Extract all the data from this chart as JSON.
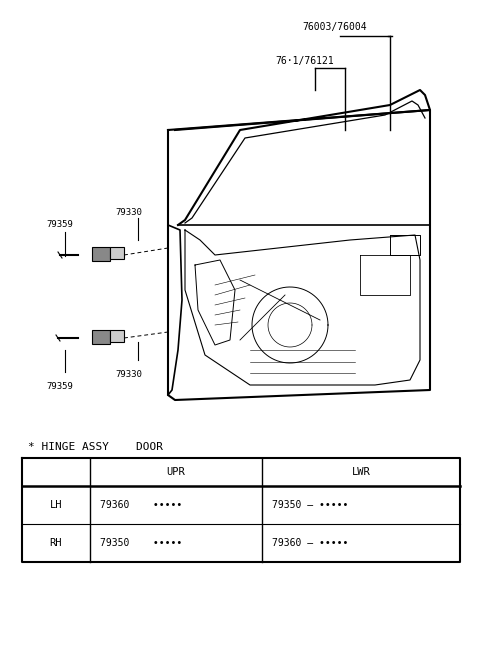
{
  "bg_color": "#ffffff",
  "title_text": "* HINGE ASSY    DOOR",
  "label_76003_76004": "76003/76004",
  "label_7611_76121": "76·1/76121",
  "label_79330_upr": "79330",
  "label_79359_upr": "79359",
  "label_79330_lwr": "79330",
  "label_79359_lwr": "79359",
  "line_color": "#000000",
  "text_color": "#000000",
  "fs_label": 6.5,
  "fs_table": 7.5,
  "fs_title": 8.0
}
